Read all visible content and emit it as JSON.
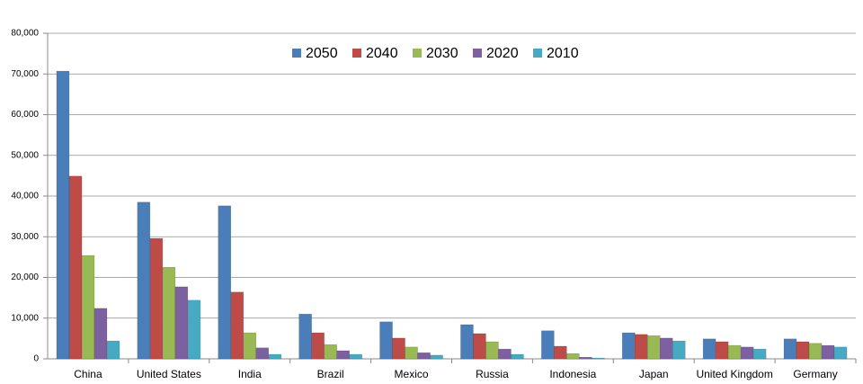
{
  "chart_data": {
    "type": "bar",
    "categories": [
      "China",
      "United States",
      "India",
      "Brazil",
      "Mexico",
      "Russia",
      "Indonesia",
      "Japan",
      "United Kingdom",
      "Germany"
    ],
    "series": [
      {
        "name": "2050",
        "color": "#4a7ebb",
        "values": [
          70700,
          38500,
          37600,
          11000,
          9100,
          8400,
          6900,
          6400,
          4900,
          4900
        ]
      },
      {
        "name": "2040",
        "color": "#be4b48",
        "values": [
          44900,
          29600,
          16400,
          6400,
          5100,
          6200,
          3100,
          6000,
          4200,
          4200
        ]
      },
      {
        "name": "2030",
        "color": "#98b954",
        "values": [
          25400,
          22500,
          6400,
          3500,
          2900,
          4200,
          1300,
          5700,
          3300,
          3800
        ]
      },
      {
        "name": "2020",
        "color": "#7d60a0",
        "values": [
          12400,
          17700,
          2700,
          2000,
          1500,
          2400,
          400,
          5100,
          2900,
          3300
        ]
      },
      {
        "name": "2010",
        "color": "#46aac5",
        "values": [
          4400,
          14400,
          1100,
          1100,
          900,
          1100,
          200,
          4400,
          2400,
          2900
        ]
      }
    ],
    "ylim": [
      0,
      80000
    ],
    "yticks": [
      0,
      {
        "value": 10000,
        "label": "10,000"
      },
      {
        "value": 20000,
        "label": "20,000"
      },
      {
        "value": 30000,
        "label": "30,000"
      },
      {
        "value": 40000,
        "label": "40,000"
      },
      {
        "value": 50000,
        "label": "50,000"
      },
      {
        "value": 60000,
        "label": "60,000"
      },
      {
        "value": 70000,
        "label": "70,000"
      },
      {
        "value": 80000,
        "label": "80,000"
      }
    ],
    "grid": true,
    "legend": "top"
  }
}
